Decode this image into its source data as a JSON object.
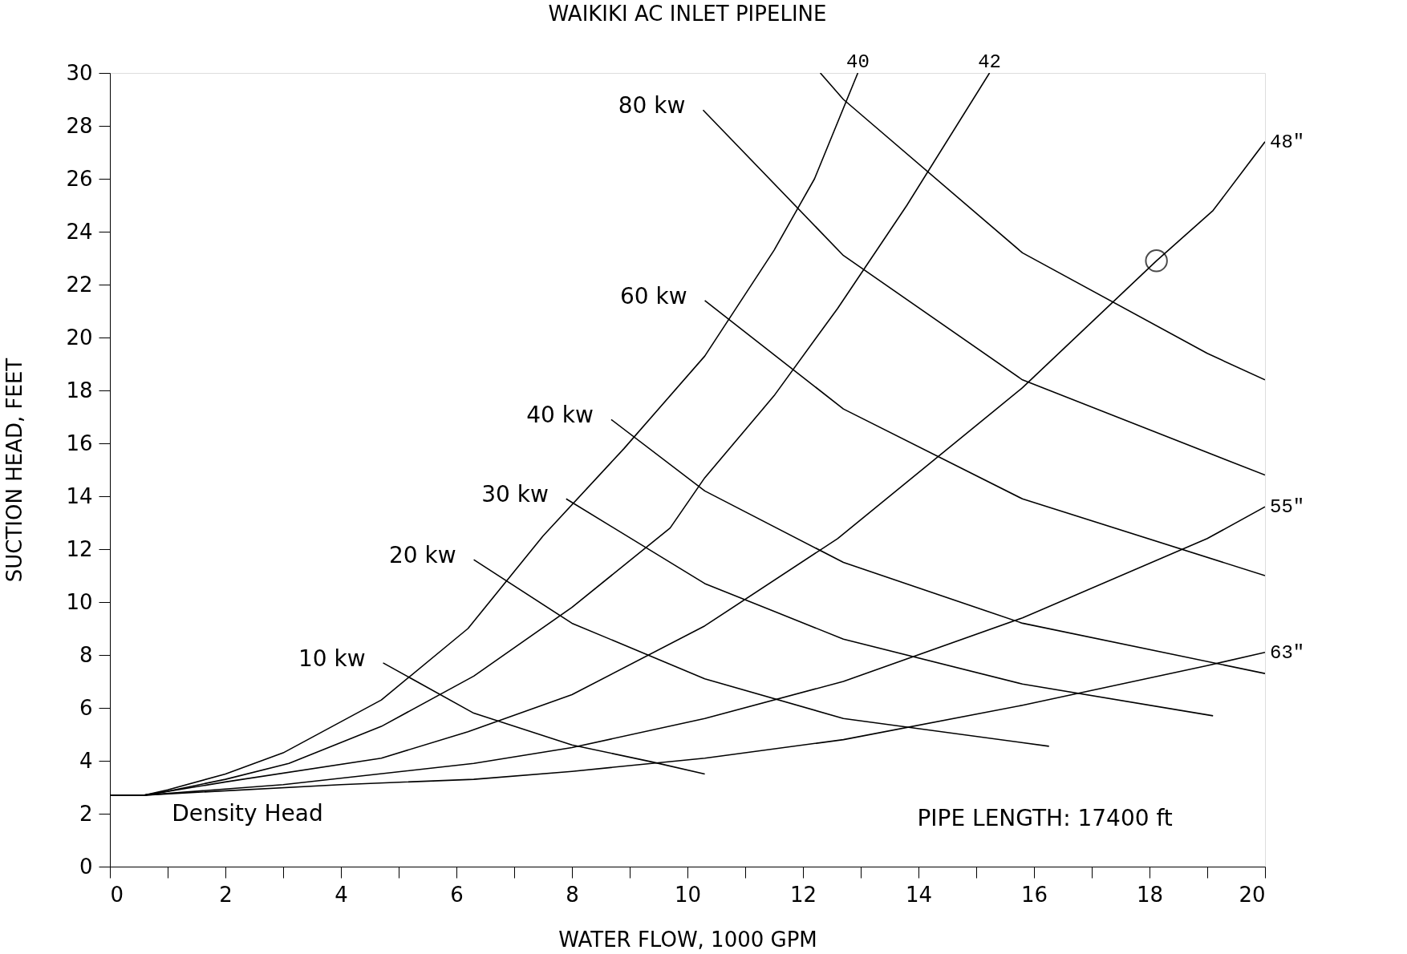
{
  "chart_data": {
    "type": "line",
    "title": "WAIKIKI AC INLET PIPELINE",
    "xlabel": "WATER FLOW, 1000 GPM",
    "ylabel": "SUCTION HEAD, FEET",
    "xlim": [
      0,
      20
    ],
    "ylim": [
      0,
      30
    ],
    "xticks": [
      0,
      {
        "value": 1,
        "label": null
      },
      2,
      {
        "value": 3,
        "label": null
      },
      4,
      {
        "value": 5,
        "label": null
      },
      6,
      {
        "value": 7,
        "label": null
      },
      8,
      {
        "value": 9,
        "label": null
      },
      10,
      {
        "value": 11,
        "label": null
      },
      12,
      {
        "value": 13,
        "label": null
      },
      14,
      {
        "value": 15,
        "label": null
      },
      16,
      {
        "value": 17,
        "label": null
      },
      18,
      {
        "value": 19,
        "label": null
      },
      20
    ],
    "yticks": [
      0,
      2,
      4,
      6,
      8,
      10,
      12,
      14,
      16,
      18,
      20,
      22,
      24,
      26,
      28,
      30
    ],
    "series": [
      {
        "name": "40",
        "color": "#000000",
        "x": [
          0,
          0.6,
          1,
          2,
          3,
          4.7,
          6.2,
          7.5,
          8.9,
          10.3,
          11.5,
          12.2,
          12.95
        ],
        "values": [
          2.7,
          2.7,
          2.9,
          3.5,
          4.3,
          6.3,
          9.0,
          12.5,
          15.8,
          19.3,
          23.3,
          26.0,
          30
        ]
      },
      {
        "name": "42",
        "color": "#000000",
        "x": [
          0,
          0.6,
          1,
          2,
          3.1,
          4.7,
          6.3,
          8,
          9.7,
          10.3,
          11.5,
          12.6,
          13.8,
          15.23
        ],
        "values": [
          2.7,
          2.7,
          2.85,
          3.3,
          3.9,
          5.3,
          7.2,
          9.8,
          12.8,
          14.7,
          17.8,
          21.1,
          25.0,
          30
        ]
      },
      {
        "name": "48\"",
        "color": "#000000",
        "x": [
          0,
          0.6,
          2,
          4.7,
          6.2,
          8,
          10.3,
          12.6,
          15.8,
          18.12,
          19.1,
          20
        ],
        "values": [
          2.7,
          2.7,
          3.2,
          4.1,
          5.1,
          6.5,
          9.1,
          12.4,
          18.1,
          22.9,
          24.8,
          27.4
        ]
      },
      {
        "name": "55\"",
        "color": "#000000",
        "x": [
          0,
          0.6,
          3,
          6.3,
          8,
          10.3,
          12.7,
          15.8,
          19,
          20
        ],
        "values": [
          2.7,
          2.7,
          3.1,
          3.9,
          4.5,
          5.6,
          7.0,
          9.4,
          12.4,
          13.6
        ]
      },
      {
        "name": "63\"",
        "color": "#000000",
        "x": [
          0,
          0.6,
          4,
          6.3,
          8,
          10.3,
          12.7,
          15.8,
          19,
          20
        ],
        "values": [
          2.7,
          2.7,
          3.1,
          3.3,
          3.6,
          4.1,
          4.8,
          6.1,
          7.6,
          8.1
        ]
      },
      {
        "name": "10 kw",
        "color": "#000000",
        "x": [
          4.73,
          6.3,
          8,
          9.4,
          10.3
        ],
        "values": [
          7.7,
          5.8,
          4.6,
          3.95,
          3.5
        ]
      },
      {
        "name": "20 kw",
        "color": "#000000",
        "x": [
          6.3,
          8,
          10.3,
          12.7,
          16.26
        ],
        "values": [
          11.6,
          9.2,
          7.1,
          5.6,
          4.55
        ]
      },
      {
        "name": "30 kw",
        "color": "#000000",
        "x": [
          7.9,
          10.3,
          12.7,
          15.8,
          19.1
        ],
        "values": [
          13.9,
          10.7,
          8.6,
          6.9,
          5.7
        ]
      },
      {
        "name": "40 kw",
        "color": "#000000",
        "x": [
          8.68,
          10.3,
          12.7,
          15.8,
          20
        ],
        "values": [
          16.9,
          14.2,
          11.5,
          9.2,
          7.3
        ]
      },
      {
        "name": "60 kw",
        "color": "#000000",
        "x": [
          10.3,
          12.7,
          15.8,
          20
        ],
        "values": [
          21.4,
          17.3,
          13.9,
          11.0
        ]
      },
      {
        "name": "80 kw",
        "color": "#000000",
        "x": [
          10.27,
          12.7,
          15.8,
          20
        ],
        "values": [
          28.6,
          23.1,
          18.4,
          14.8
        ]
      },
      {
        "color": "#000000",
        "x": [
          12.3,
          12.7,
          15.8,
          19,
          20
        ],
        "values": [
          30,
          29.0,
          23.2,
          19.4,
          18.4
        ]
      },
      {
        "type": "scatter",
        "marker": "circle",
        "color": "#000000",
        "x": [
          18.12
        ],
        "values": [
          22.9
        ]
      }
    ],
    "annotations": [
      {
        "text": "Density Head",
        "x": 0.6,
        "y": 2.7
      },
      "PIPE LENGTH:      17400 ft"
    ]
  }
}
